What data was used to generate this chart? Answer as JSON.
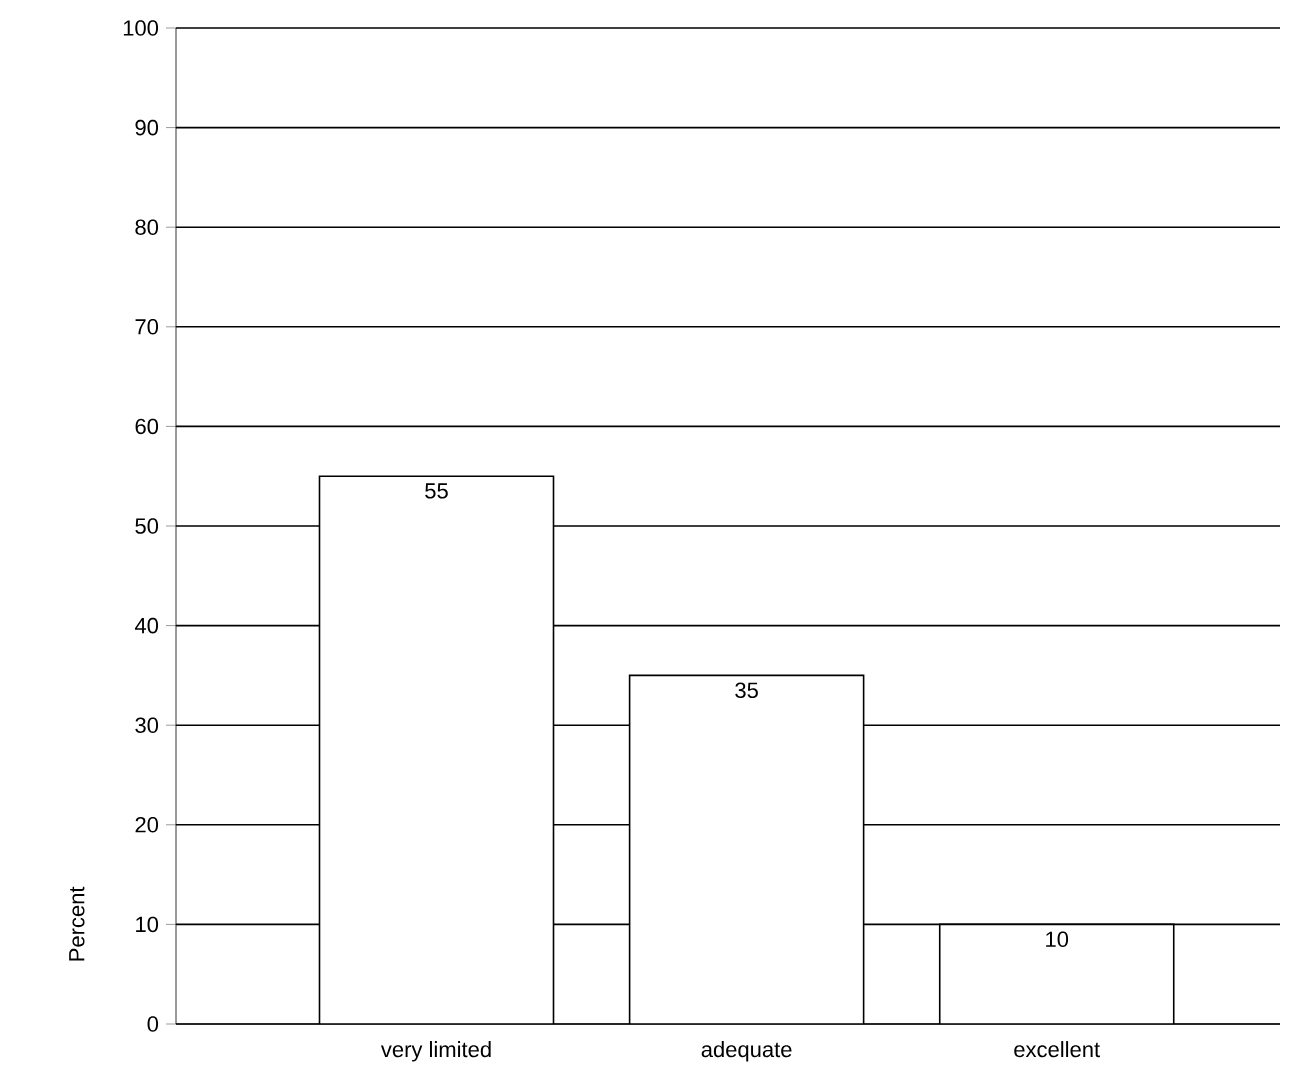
{
  "chart_data": {
    "type": "bar",
    "ylabel": "Percent",
    "categories": [
      "very limited",
      "adequate",
      "excellent"
    ],
    "values": [
      55,
      35,
      10
    ],
    "color": "#ffffff",
    "ylim": [
      0,
      100
    ],
    "yticks": [
      0,
      10,
      20,
      30,
      40,
      50,
      60,
      70,
      80,
      90,
      100
    ],
    "grid": "y",
    "data_labels": true
  }
}
